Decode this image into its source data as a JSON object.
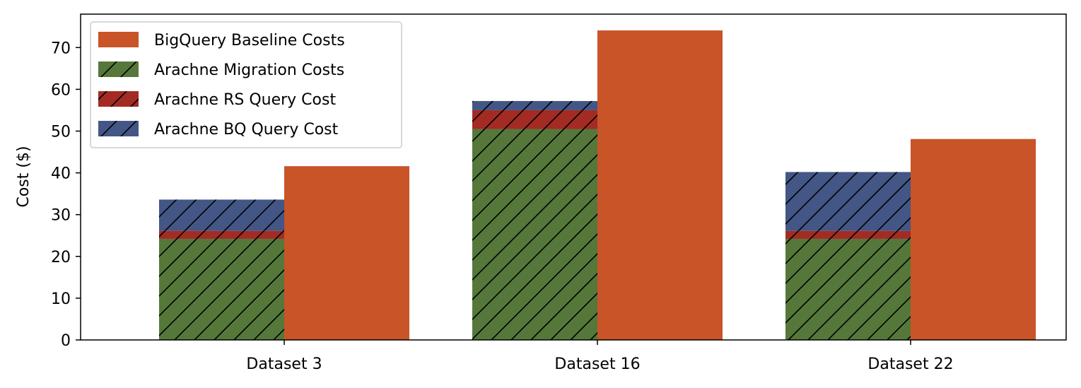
{
  "chart_data": {
    "type": "bar",
    "ylabel": "Cost ($)",
    "xlabel": "",
    "ylim": [
      0,
      78
    ],
    "yticks": [
      0,
      10,
      20,
      30,
      40,
      50,
      60,
      70
    ],
    "categories": [
      "Dataset 3",
      "Dataset 16",
      "Dataset 22"
    ],
    "stacked_series": [
      {
        "name": "Arachne Migration Costs",
        "values": [
          24.2,
          50.5,
          24.2
        ],
        "color": "#55783a",
        "hatch": true
      },
      {
        "name": "Arachne RS Query Cost",
        "values": [
          1.9,
          4.5,
          1.9
        ],
        "color": "#a32b24",
        "hatch": true
      },
      {
        "name": "Arachne BQ Query Cost",
        "values": [
          7.5,
          2.2,
          14.1
        ],
        "color": "#435685",
        "hatch": true
      }
    ],
    "baseline_series": {
      "name": "BigQuery Baseline Costs",
      "values": [
        41.6,
        74.1,
        48.1
      ],
      "color": "#c85427"
    },
    "legend": {
      "position": "top-left",
      "entries": [
        "BigQuery Baseline Costs",
        "Arachne Migration Costs",
        "Arachne RS Query Cost",
        "Arachne BQ Query Cost"
      ]
    },
    "grid": false
  }
}
